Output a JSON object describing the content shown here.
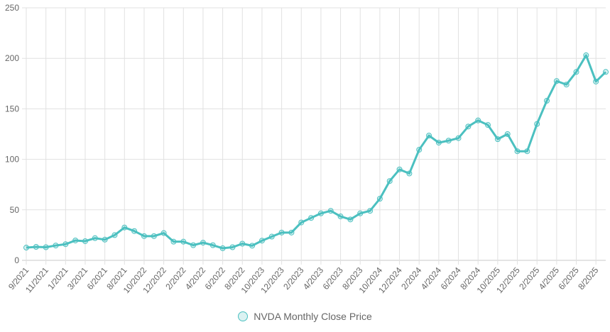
{
  "chart_data": {
    "type": "line",
    "categories": [
      "9/2021",
      "",
      "11/2021",
      "",
      "1/2021",
      "",
      "3/2021",
      "",
      "6/2021",
      "",
      "8/2021",
      "",
      "10/2022",
      "",
      "12/2022",
      "",
      "2/2022",
      "",
      "4/2022",
      "",
      "6/2022",
      "",
      "8/2022",
      "",
      "10/2023",
      "",
      "12/2023",
      "",
      "2/2023",
      "",
      "4/2023",
      "",
      "6/2023",
      "",
      "8/2023",
      "",
      "10/2024",
      "",
      "12/2024",
      "",
      "2/2024",
      "",
      "4/2024",
      "",
      "6/2024",
      "",
      "8/2024",
      "",
      "10/2025",
      "",
      "12/2025",
      "",
      "2/2025",
      "",
      "4/2025",
      "",
      "6/2025",
      "",
      "8/2025",
      ""
    ],
    "series": [
      {
        "name": "NVDA Monthly Close Price",
        "values": [
          12.6,
          13.3,
          13,
          14.7,
          16,
          19.7,
          19,
          22,
          20.5,
          25,
          32.5,
          29,
          24,
          24,
          27,
          18.5,
          18.5,
          15,
          17.5,
          15,
          12,
          13,
          16.5,
          14.5,
          19.5,
          23.5,
          27.5,
          27.5,
          37.5,
          42,
          46.5,
          49,
          43.5,
          40.5,
          46.5,
          49,
          61,
          78.5,
          90,
          86,
          109.5,
          123.5,
          116.5,
          118.5,
          121,
          132.5,
          138.5,
          134,
          120,
          125,
          108,
          108,
          135,
          158,
          177.5,
          174,
          186.5,
          203,
          177,
          186.5
        ]
      }
    ],
    "ylim": [
      0,
      250
    ],
    "yticks": [
      0,
      50,
      100,
      150,
      200,
      250
    ],
    "grid": true,
    "legend_position": "bottom",
    "colors": {
      "line": "#4bc0c0",
      "point_fill": "rgba(75,192,192,0.2)",
      "grid": "#e1e1e1"
    }
  }
}
